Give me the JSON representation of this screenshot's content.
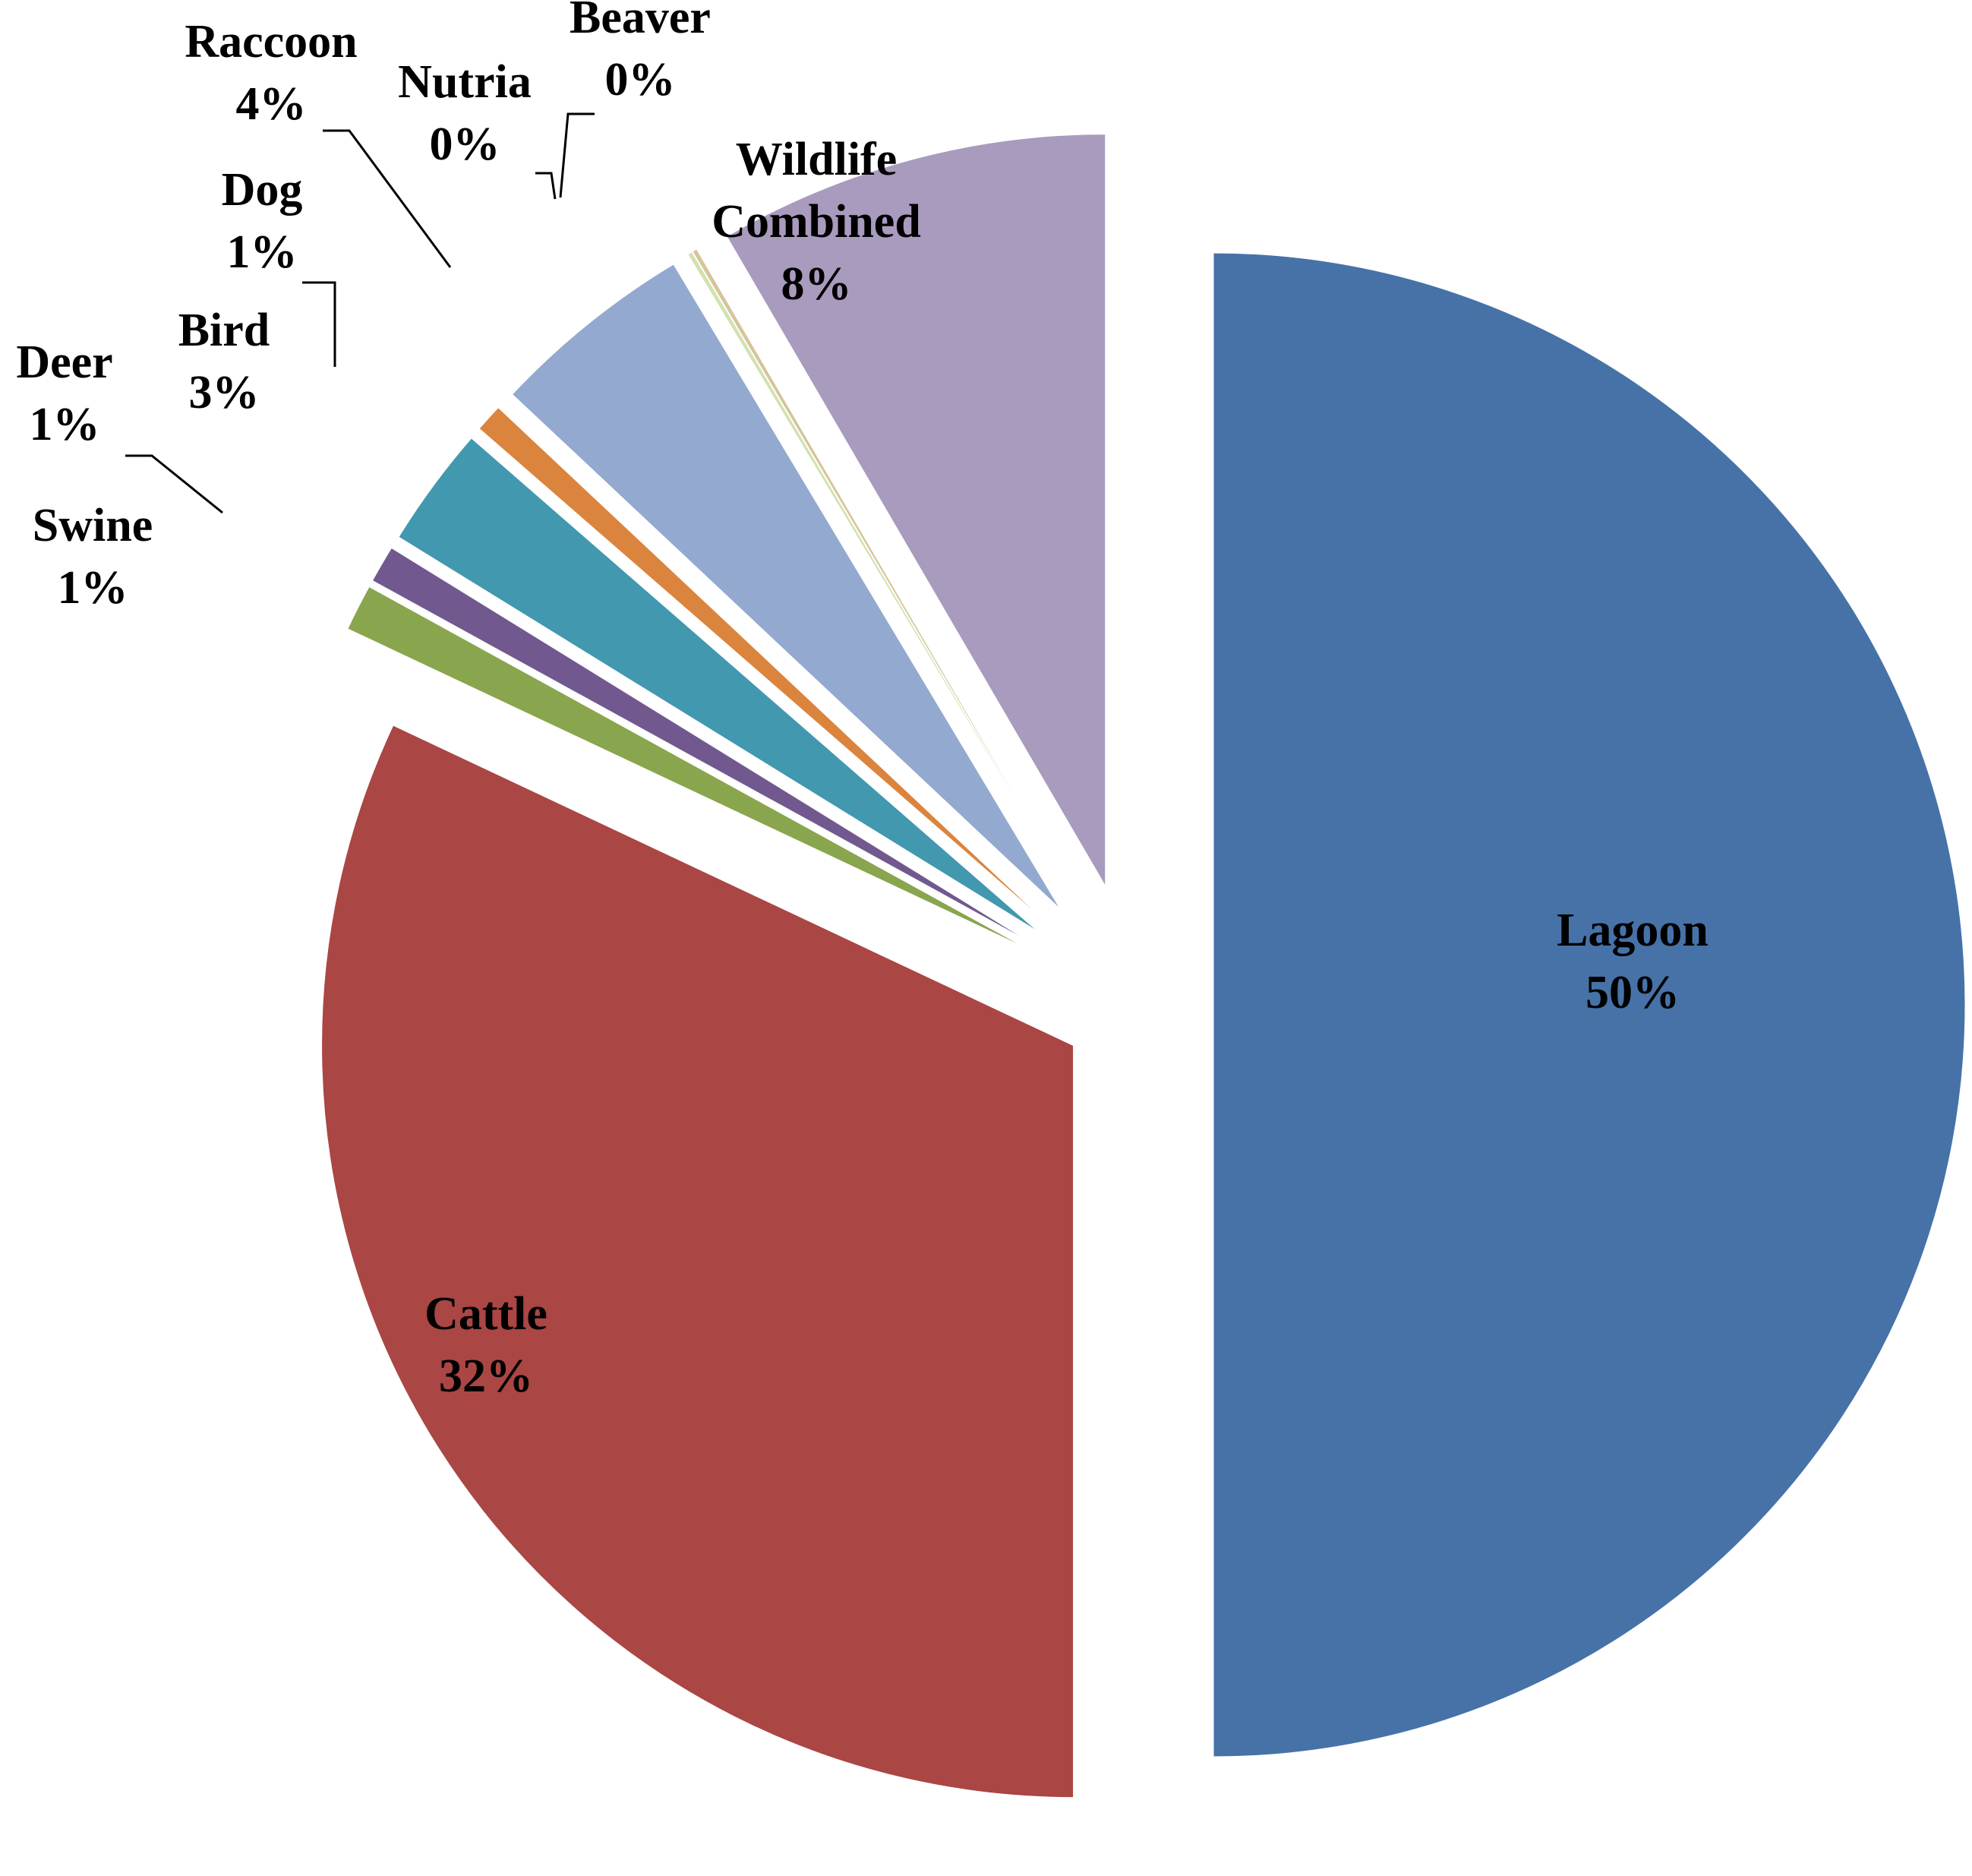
{
  "chart_data": {
    "type": "pie",
    "title": "",
    "slices": [
      {
        "label": "Lagoon",
        "value": 50,
        "percent_label": "50%",
        "color": "#4672A8"
      },
      {
        "label": "Cattle",
        "value": 32,
        "percent_label": "32%",
        "color": "#AA4644"
      },
      {
        "label": "Swine",
        "value": 1,
        "percent_label": "1%",
        "color": "#89A54E"
      },
      {
        "label": "Deer",
        "value": 0.8,
        "percent_label": "1%",
        "color": "#71588F"
      },
      {
        "label": "Bird",
        "value": 2.6,
        "percent_label": "3%",
        "color": "#4198AF"
      },
      {
        "label": "Dog",
        "value": 0.6,
        "percent_label": "1%",
        "color": "#DB843D"
      },
      {
        "label": "Raccoon",
        "value": 4.4,
        "percent_label": "4%",
        "color": "#93A9CF"
      },
      {
        "label": "Nutria",
        "value": 0.1,
        "percent_label": "0%",
        "color": "#D1E2B0"
      },
      {
        "label": "Beaver",
        "value": 0.1,
        "percent_label": "0%",
        "color": "#D6C49A"
      },
      {
        "label": "Wildlife\nCombined",
        "value": 8.4,
        "percent_label": "8%",
        "color": "#A99BBD"
      }
    ],
    "start_angle_deg": 0,
    "direction": "clockwise",
    "exploded": true,
    "legend": "none"
  }
}
